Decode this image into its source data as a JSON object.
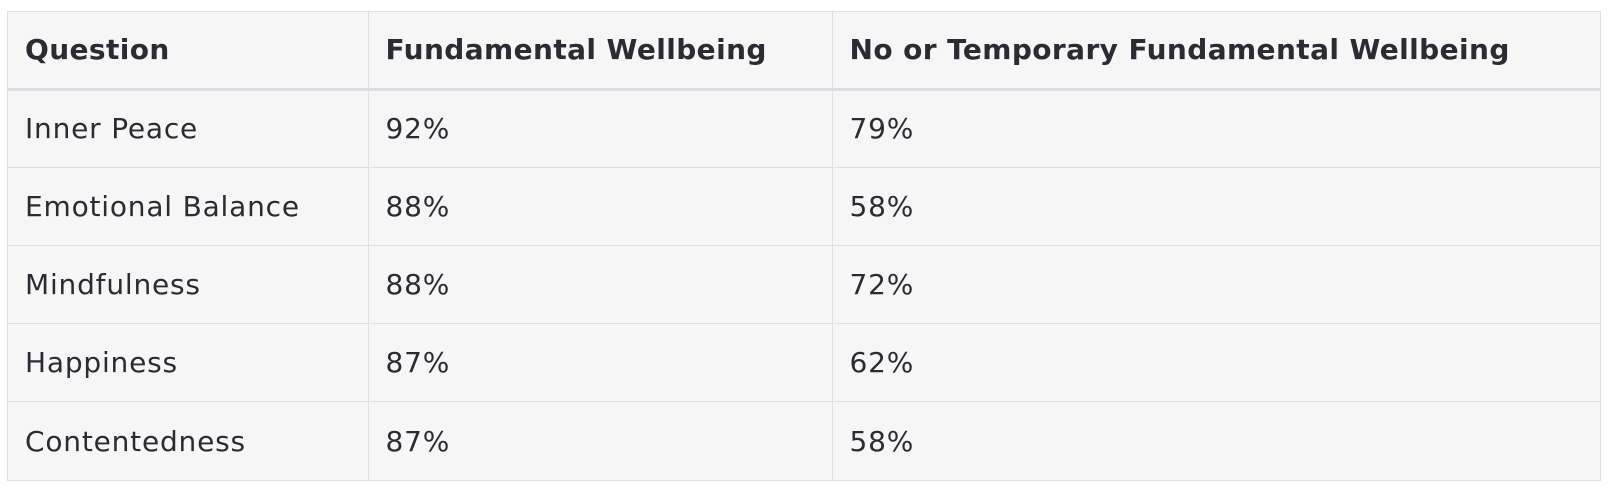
{
  "table": {
    "headers": [
      "Question",
      "Fundamental Wellbeing",
      "No or Temporary Fundamental Wellbeing"
    ],
    "rows": [
      [
        "Inner Peace",
        "92%",
        "79%"
      ],
      [
        "Emotional Balance",
        "88%",
        "58%"
      ],
      [
        "Mindfulness",
        "88%",
        "72%"
      ],
      [
        "Happiness",
        "87%",
        "62%"
      ],
      [
        "Contentedness",
        "87%",
        "58%"
      ]
    ]
  },
  "colors": {
    "background": "#f6f6f7",
    "border": "#dfdfe3",
    "text": "#2a2b33"
  }
}
